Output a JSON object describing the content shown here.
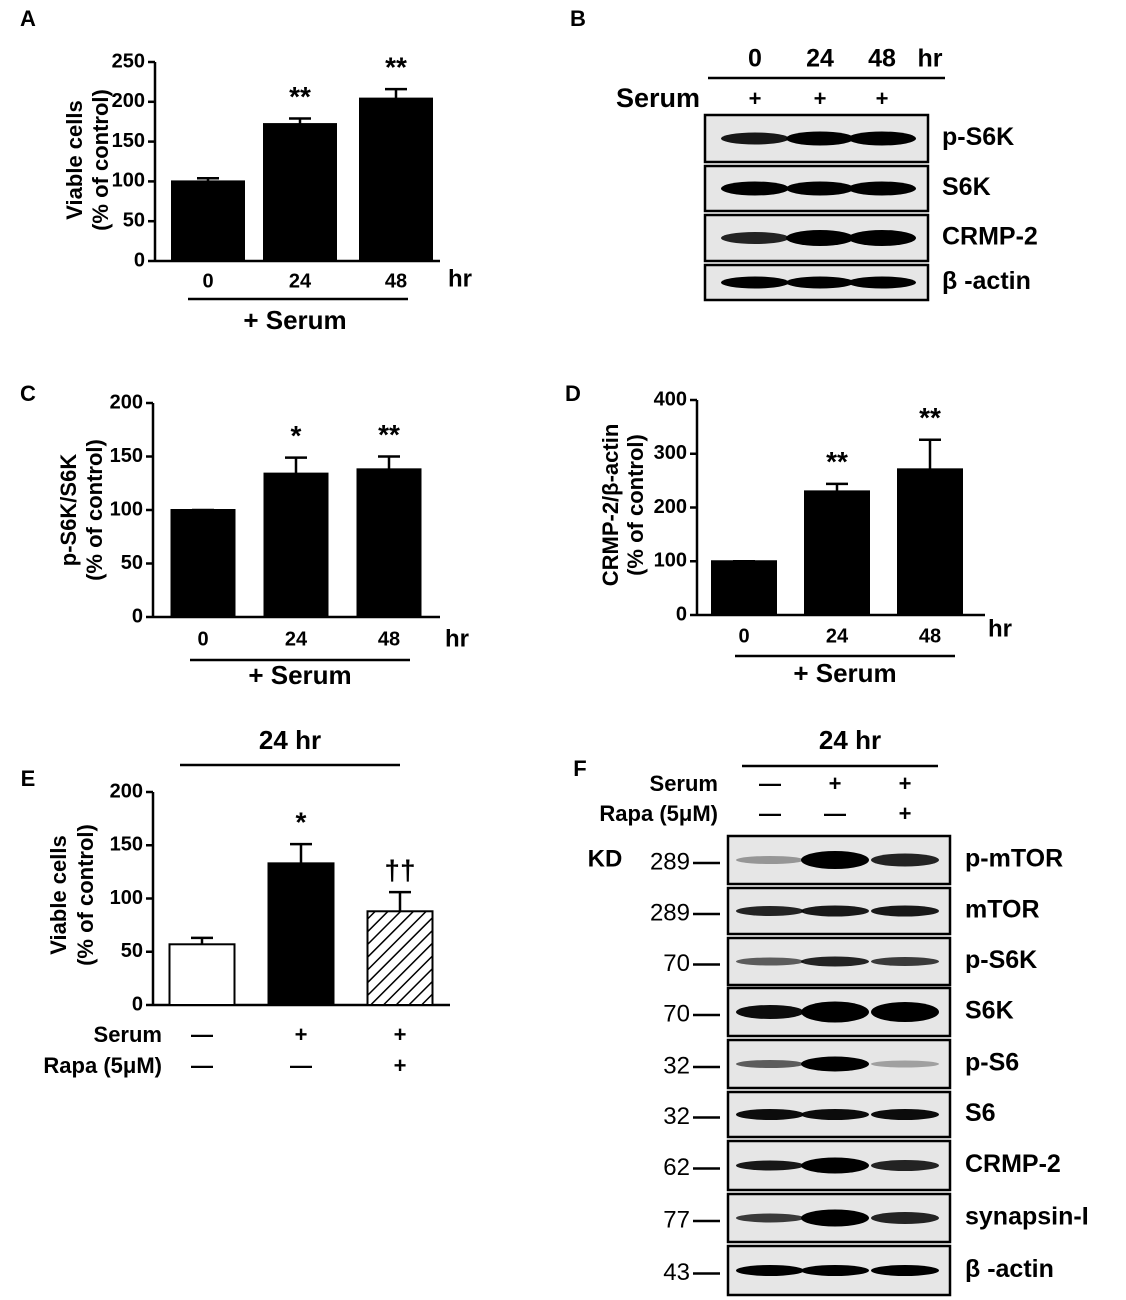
{
  "chart_data": [
    {
      "type": "bar",
      "label": "A",
      "ylabel": [
        "Viable cells",
        "(% of control)"
      ],
      "categories": [
        "0",
        "24",
        "48"
      ],
      "x_unit": "hr",
      "group_label": "+ Serum",
      "values": [
        100,
        172,
        204
      ],
      "errors": [
        4,
        7,
        12
      ],
      "annotations": [
        null,
        "**",
        "**"
      ],
      "color": "#000000",
      "ylim": [
        0,
        250
      ],
      "yticks": [
        0,
        50,
        100,
        150,
        200,
        250
      ]
    },
    {
      "type": "bar",
      "label": "C",
      "ylabel": [
        "p-S6K/S6K",
        "(% of control)"
      ],
      "categories": [
        "0",
        "24",
        "48"
      ],
      "x_unit": "hr",
      "group_label": "+ Serum",
      "values": [
        100,
        134,
        138
      ],
      "errors": [
        0,
        15,
        12
      ],
      "annotations": [
        null,
        "*",
        "**"
      ],
      "color": "#000000",
      "ylim": [
        0,
        200
      ],
      "yticks": [
        0,
        50,
        100,
        150,
        200
      ]
    },
    {
      "type": "bar",
      "label": "D",
      "ylabel": [
        "CRMP-2/β-actin",
        "(% of control)"
      ],
      "categories": [
        "0",
        "24",
        "48"
      ],
      "x_unit": "hr",
      "group_label": "+ Serum",
      "values": [
        100,
        230,
        271
      ],
      "errors": [
        0,
        14,
        55
      ],
      "annotations": [
        null,
        "**",
        "**"
      ],
      "color": "#000000",
      "ylim": [
        0,
        400
      ],
      "yticks": [
        0,
        100,
        200,
        300,
        400
      ]
    },
    {
      "type": "bar",
      "label": "E",
      "title": "24 hr",
      "ylabel": [
        "Viable cells",
        "(% of control)"
      ],
      "conditions": [
        {
          "name": "Serum",
          "values": [
            "—",
            "+",
            "+"
          ]
        },
        {
          "name": "Rapa (5μM)",
          "values": [
            "—",
            "—",
            "+"
          ]
        }
      ],
      "values": [
        57,
        133,
        88
      ],
      "errors": [
        6,
        18,
        18
      ],
      "annotations": [
        null,
        "*",
        "††"
      ],
      "color": "#000000",
      "bar_styles": [
        "open",
        "solid",
        "hatched"
      ],
      "ylim": [
        0,
        200
      ],
      "yticks": [
        0,
        50,
        100,
        150,
        200
      ]
    }
  ],
  "blots": [
    {
      "label": "B",
      "times": [
        "0",
        "24",
        "48"
      ],
      "time_unit": "hr",
      "conditions": [
        {
          "name": "Serum",
          "values": [
            "+",
            "+",
            "+"
          ]
        }
      ],
      "rows": [
        {
          "protein": "p-S6K"
        },
        {
          "protein": "S6K"
        },
        {
          "protein": "CRMP-2"
        },
        {
          "protein": "β -actin"
        }
      ]
    },
    {
      "label": "F",
      "title": "24 hr",
      "conditions": [
        {
          "name": "Serum",
          "values": [
            "—",
            "+",
            "+"
          ]
        },
        {
          "name": "Rapa (5μM)",
          "values": [
            "—",
            "—",
            "+"
          ]
        }
      ],
      "marker_unit": "KD",
      "rows": [
        {
          "marker": 289,
          "protein": "p-mTOR"
        },
        {
          "marker": 289,
          "protein": "mTOR"
        },
        {
          "marker": 70,
          "protein": "p-S6K"
        },
        {
          "marker": 70,
          "protein": "S6K"
        },
        {
          "marker": 32,
          "protein": "p-S6"
        },
        {
          "marker": 32,
          "protein": "S6"
        },
        {
          "marker": 62,
          "protein": "CRMP-2"
        },
        {
          "marker": 77,
          "protein": "synapsin-I"
        },
        {
          "marker": 43,
          "protein": "β -actin"
        }
      ]
    }
  ]
}
